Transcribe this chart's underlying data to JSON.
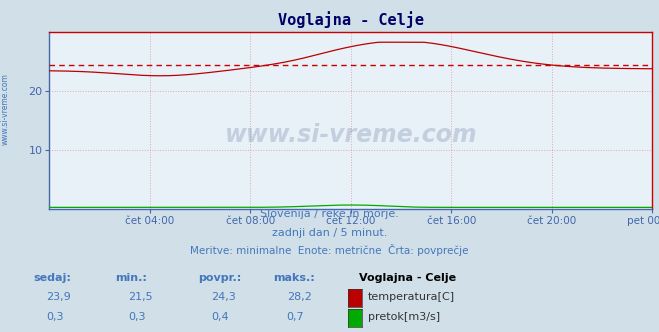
{
  "title": "Voglajna - Celje",
  "bg_color": "#d0dfe8",
  "plot_bg_color": "#e8f0f8",
  "temp_color": "#bb0000",
  "flow_color": "#00aa00",
  "avg_line_color": "#cc0000",
  "grid_color": "#ddaaaa",
  "spine_left_color": "#4466aa",
  "spine_bottom_color": "#4466aa",
  "spine_right_color": "#cc0000",
  "spine_top_color": "#cc0000",
  "temp_min": 21.5,
  "temp_max": 28.2,
  "temp_avg": 24.3,
  "temp_current": 23.9,
  "flow_min": 0.3,
  "flow_max": 0.7,
  "flow_avg": 0.4,
  "flow_current": 0.3,
  "ylim_min": 0,
  "ylim_max": 30,
  "xlabel_ticks": [
    "čet 04:00",
    "čet 08:00",
    "čet 12:00",
    "čet 16:00",
    "čet 20:00",
    "pet 00:00"
  ],
  "subtitle1": "Slovenija / reke in morje.",
  "subtitle2": "zadnji dan / 5 minut.",
  "subtitle3": "Meritve: minimalne  Enote: metrične  Črta: povprečje",
  "legend_title": "Voglajna - Celje",
  "watermark": "www.si-vreme.com",
  "label_color": "#4477bb",
  "title_color": "#000066",
  "tick_color": "#4466aa",
  "tick_label_color": "#4466aa"
}
